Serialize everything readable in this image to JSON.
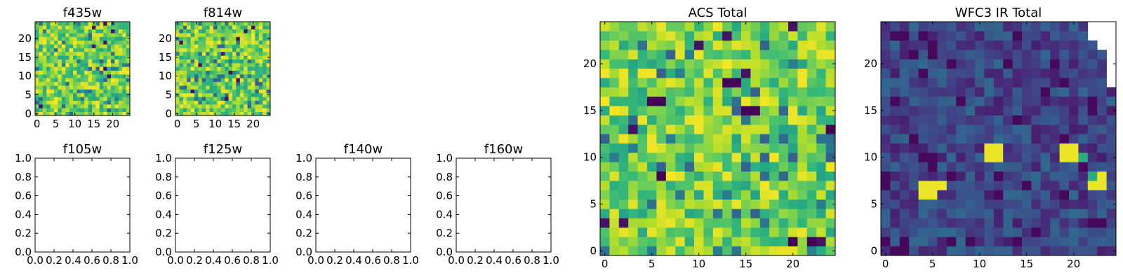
{
  "chart_data": [
    {
      "type": "heatmap",
      "title": "f435w",
      "xticks": [
        0,
        5,
        10,
        15,
        20
      ],
      "yticks": [
        0,
        5,
        10,
        15,
        20
      ],
      "xlim": [
        -0.5,
        24.5
      ],
      "ylim": [
        -0.5,
        24.5
      ],
      "grid_size": 25,
      "colormap": "viridis",
      "contrast": "low-noise, mostly green-yellow"
    },
    {
      "type": "heatmap",
      "title": "f814w",
      "xticks": [
        0,
        5,
        10,
        15,
        20
      ],
      "yticks": [
        0,
        5,
        10,
        15,
        20
      ],
      "xlim": [
        -0.5,
        24.5
      ],
      "ylim": [
        -0.5,
        24.5
      ],
      "grid_size": 25,
      "colormap": "viridis",
      "contrast": "low-noise, mostly green-yellow"
    },
    {
      "type": "empty",
      "title": "f105w",
      "xticks": [
        "0.0",
        "0.2",
        "0.4",
        "0.6",
        "0.8",
        "1.0"
      ],
      "yticks": [
        "0.0",
        "0.2",
        "0.4",
        "0.6",
        "0.8",
        "1.0"
      ],
      "xlim": [
        0,
        1
      ],
      "ylim": [
        0,
        1
      ]
    },
    {
      "type": "empty",
      "title": "f125w",
      "xticks": [
        "0.0",
        "0.2",
        "0.4",
        "0.6",
        "0.8",
        "1.0"
      ],
      "yticks": [
        "0.0",
        "0.2",
        "0.4",
        "0.6",
        "0.8",
        "1.0"
      ],
      "xlim": [
        0,
        1
      ],
      "ylim": [
        0,
        1
      ]
    },
    {
      "type": "empty",
      "title": "f140w",
      "xticks": [
        "0.0",
        "0.2",
        "0.4",
        "0.6",
        "0.8",
        "1.0"
      ],
      "yticks": [
        "0.0",
        "0.2",
        "0.4",
        "0.6",
        "0.8",
        "1.0"
      ],
      "xlim": [
        0,
        1
      ],
      "ylim": [
        0,
        1
      ]
    },
    {
      "type": "empty",
      "title": "f160w",
      "xticks": [
        "0.0",
        "0.2",
        "0.4",
        "0.6",
        "0.8",
        "1.0"
      ],
      "yticks": [
        "0.0",
        "0.2",
        "0.4",
        "0.6",
        "0.8",
        "1.0"
      ],
      "xlim": [
        0,
        1
      ],
      "ylim": [
        0,
        1
      ]
    },
    {
      "type": "heatmap",
      "title": "ACS Total",
      "xticks": [
        0,
        5,
        10,
        15,
        20
      ],
      "yticks": [
        0,
        5,
        10,
        15,
        20
      ],
      "xlim": [
        -0.5,
        24.5
      ],
      "ylim": [
        -0.5,
        24.5
      ],
      "grid_size": 25,
      "colormap": "viridis",
      "contrast": "noisy, mostly green-yellow",
      "dark_pixels": [
        [
          13,
          18
        ],
        [
          14,
          18
        ],
        [
          5,
          16
        ],
        [
          6,
          16
        ],
        [
          15,
          15
        ],
        [
          16,
          15
        ],
        [
          24,
          13
        ],
        [
          6,
          8
        ],
        [
          20,
          1
        ],
        [
          22,
          1
        ]
      ]
    },
    {
      "type": "heatmap",
      "title": "WFC3 IR Total",
      "xticks": [
        0,
        5,
        10,
        15,
        20
      ],
      "yticks": [
        0,
        5,
        10,
        15,
        20
      ],
      "xlim": [
        -0.5,
        24.5
      ],
      "ylim": [
        -0.5,
        24.5
      ],
      "grid_size": 25,
      "colormap": "viridis",
      "contrast": "mostly dark blue-purple background",
      "bright_pixels": [
        [
          4,
          6
        ],
        [
          4,
          7
        ],
        [
          5,
          6
        ],
        [
          5,
          7
        ],
        [
          6,
          7
        ],
        [
          11,
          11
        ],
        [
          12,
          11
        ],
        [
          12,
          10
        ],
        [
          11,
          10
        ],
        [
          19,
          11
        ],
        [
          19,
          10
        ],
        [
          20,
          11
        ],
        [
          20,
          10
        ],
        [
          21,
          10
        ],
        [
          22,
          8
        ],
        [
          22,
          7
        ],
        [
          23,
          7
        ],
        [
          23,
          8
        ]
      ],
      "masked_pixels": [
        [
          22,
          24
        ],
        [
          23,
          24
        ],
        [
          24,
          24
        ],
        [
          22,
          23
        ],
        [
          23,
          23
        ],
        [
          24,
          23
        ],
        [
          23,
          22
        ],
        [
          24,
          22
        ],
        [
          24,
          21
        ],
        [
          24,
          20
        ],
        [
          24,
          19
        ],
        [
          24,
          18
        ]
      ]
    }
  ]
}
